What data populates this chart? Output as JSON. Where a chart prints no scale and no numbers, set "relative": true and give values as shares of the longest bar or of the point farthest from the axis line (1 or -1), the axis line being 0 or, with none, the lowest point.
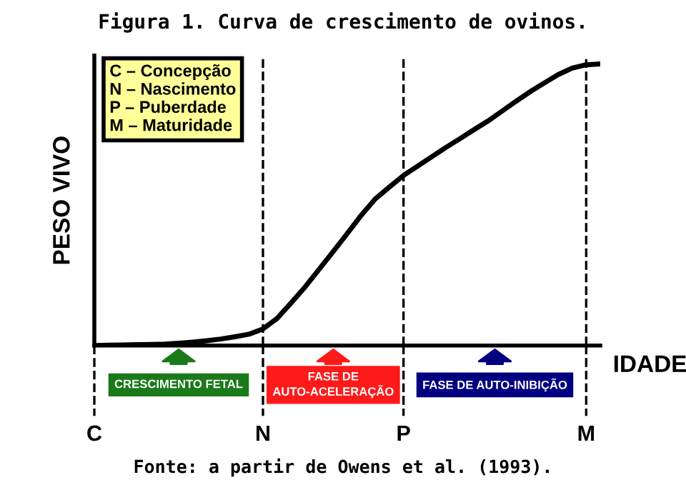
{
  "chart_data": {
    "type": "line",
    "relative": true,
    "title": "Figura 1. Curva de crescimento de ovinos.",
    "xlabel": "IDADE",
    "ylabel": "PESO VIVO",
    "categories": [
      "C",
      null,
      null,
      null,
      null,
      null,
      null,
      null,
      null,
      null,
      null,
      null,
      "N",
      null,
      null,
      null,
      null,
      null,
      null,
      null,
      null,
      null,
      "P",
      null,
      null,
      null,
      null,
      null,
      null,
      null,
      null,
      null,
      null,
      null,
      null,
      "M",
      null
    ],
    "series": [
      {
        "color": "#000000",
        "values": [
          0,
          0.001,
          0.002,
          0.003,
          0.004,
          0.005,
          0.008,
          0.012,
          0.017,
          0.023,
          0.031,
          0.04,
          0.059,
          0.096,
          0.151,
          0.208,
          0.271,
          0.334,
          0.398,
          0.463,
          0.521,
          0.563,
          0.604,
          0.637,
          0.67,
          0.703,
          0.734,
          0.766,
          0.797,
          0.832,
          0.867,
          0.901,
          0.932,
          0.962,
          0.985,
          0.997,
          1.0
        ]
      }
    ],
    "ref_lines": [
      {
        "axis": "x",
        "value": "N",
        "color": "#000000",
        "line_style": "dashed"
      },
      {
        "axis": "x",
        "value": "P",
        "color": "#000000",
        "line_style": "dashed"
      },
      {
        "axis": "x",
        "value": "M",
        "color": "#000000",
        "line_style": "dashed"
      }
    ],
    "annotations": [
      "C – Concepção\nN – Nascimento\nP – Puberdade\nM – Maturidade",
      "CRESCIMENTO FETAL",
      "FASE DE\nAUTO-ACELERAÇÃO",
      "FASE DE AUTO-INIBIÇÃO",
      "Fonte: a partir de Owens et al. (1993)."
    ],
    "legend": false,
    "marker": "none",
    "line_style": "solid"
  }
}
